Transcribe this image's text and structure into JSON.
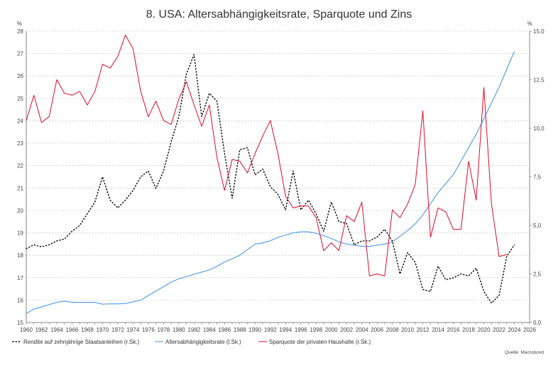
{
  "chart_data": {
    "type": "line",
    "title": "8. USA: Altersabhängigkeitsrate, Sparquote und Zins",
    "left_axis": {
      "unit": "%",
      "ylim": [
        15,
        28
      ],
      "ticks": [
        15,
        16,
        17,
        18,
        19,
        20,
        21,
        22,
        23,
        24,
        25,
        26,
        27,
        28
      ]
    },
    "right_axis": {
      "unit": "%",
      "ylim": [
        0,
        15
      ],
      "ticks": [
        0,
        2.5,
        5,
        7.5,
        10,
        12.5,
        15
      ],
      "tick_labels": [
        "0,0",
        "2,5",
        "5,0",
        "7,5",
        "10,0",
        "12,5",
        "15,0"
      ]
    },
    "x_axis": {
      "xlim": [
        1960,
        2026
      ],
      "ticks": [
        1960,
        1962,
        1964,
        1966,
        1968,
        1970,
        1972,
        1974,
        1976,
        1978,
        1980,
        1982,
        1984,
        1986,
        1988,
        1990,
        1992,
        1994,
        1996,
        1998,
        2000,
        2002,
        2004,
        2006,
        2008,
        2010,
        2012,
        2014,
        2016,
        2018,
        2020,
        2022,
        2024,
        2026
      ]
    },
    "series": [
      {
        "name": "Rendite auf zehnjährige Staatsanleihen (r.Sk.)",
        "axis": "right",
        "color": "#000000",
        "style": "dotted",
        "points": [
          [
            1960,
            3.8
          ],
          [
            1961,
            4.0
          ],
          [
            1962,
            3.9
          ],
          [
            1963,
            4.0
          ],
          [
            1964,
            4.2
          ],
          [
            1965,
            4.3
          ],
          [
            1966,
            4.7
          ],
          [
            1967,
            5.0
          ],
          [
            1968,
            5.6
          ],
          [
            1969,
            6.2
          ],
          [
            1970,
            7.5
          ],
          [
            1971,
            6.3
          ],
          [
            1972,
            5.9
          ],
          [
            1973,
            6.3
          ],
          [
            1974,
            6.8
          ],
          [
            1975,
            7.5
          ],
          [
            1976,
            7.8
          ],
          [
            1977,
            6.9
          ],
          [
            1978,
            7.8
          ],
          [
            1979,
            9.3
          ],
          [
            1980,
            10.6
          ],
          [
            1981,
            12.8
          ],
          [
            1982,
            13.8
          ],
          [
            1983,
            10.6
          ],
          [
            1984,
            11.8
          ],
          [
            1985,
            11.4
          ],
          [
            1986,
            8.7
          ],
          [
            1987,
            6.4
          ],
          [
            1988,
            8.9
          ],
          [
            1989,
            9.0
          ],
          [
            1990,
            7.6
          ],
          [
            1991,
            7.9
          ],
          [
            1992,
            7.0
          ],
          [
            1993,
            6.6
          ],
          [
            1994,
            5.8
          ],
          [
            1995,
            7.8
          ],
          [
            1996,
            5.8
          ],
          [
            1997,
            6.3
          ],
          [
            1998,
            5.6
          ],
          [
            1999,
            4.7
          ],
          [
            2000,
            6.2
          ],
          [
            2001,
            5.2
          ],
          [
            2002,
            5.1
          ],
          [
            2003,
            4.0
          ],
          [
            2004,
            4.2
          ],
          [
            2005,
            4.2
          ],
          [
            2006,
            4.4
          ],
          [
            2007,
            4.8
          ],
          [
            2008,
            4.2
          ],
          [
            2009,
            2.5
          ],
          [
            2010,
            3.6
          ],
          [
            2011,
            3.1
          ],
          [
            2012,
            1.7
          ],
          [
            2013,
            1.6
          ],
          [
            2014,
            2.9
          ],
          [
            2015,
            2.2
          ],
          [
            2016,
            2.3
          ],
          [
            2017,
            2.5
          ],
          [
            2018,
            2.4
          ],
          [
            2019,
            2.8
          ],
          [
            2020,
            1.6
          ],
          [
            2021,
            1.0
          ],
          [
            2022,
            1.4
          ],
          [
            2023,
            3.4
          ],
          [
            2024,
            4.0
          ]
        ]
      },
      {
        "name": "Altersabhängigkeitsrate (l.Sk.)",
        "axis": "left",
        "color": "#3a8ee6",
        "style": "solid",
        "points": [
          [
            1960,
            15.4
          ],
          [
            1961,
            15.6
          ],
          [
            1962,
            15.7
          ],
          [
            1963,
            15.8
          ],
          [
            1964,
            15.9
          ],
          [
            1965,
            15.95
          ],
          [
            1966,
            15.9
          ],
          [
            1967,
            15.9
          ],
          [
            1968,
            15.9
          ],
          [
            1969,
            15.9
          ],
          [
            1970,
            15.82
          ],
          [
            1971,
            15.83
          ],
          [
            1972,
            15.83
          ],
          [
            1973,
            15.85
          ],
          [
            1974,
            15.92
          ],
          [
            1975,
            16.0
          ],
          [
            1976,
            16.2
          ],
          [
            1977,
            16.4
          ],
          [
            1978,
            16.6
          ],
          [
            1979,
            16.8
          ],
          [
            1980,
            16.95
          ],
          [
            1981,
            17.05
          ],
          [
            1982,
            17.15
          ],
          [
            1983,
            17.25
          ],
          [
            1984,
            17.35
          ],
          [
            1985,
            17.5
          ],
          [
            1986,
            17.7
          ],
          [
            1987,
            17.85
          ],
          [
            1988,
            18.0
          ],
          [
            1989,
            18.25
          ],
          [
            1990,
            18.5
          ],
          [
            1991,
            18.55
          ],
          [
            1992,
            18.65
          ],
          [
            1993,
            18.8
          ],
          [
            1994,
            18.9
          ],
          [
            1995,
            19.0
          ],
          [
            1996,
            19.05
          ],
          [
            1997,
            19.05
          ],
          [
            1998,
            18.98
          ],
          [
            1999,
            18.88
          ],
          [
            2000,
            18.75
          ],
          [
            2001,
            18.6
          ],
          [
            2002,
            18.5
          ],
          [
            2003,
            18.45
          ],
          [
            2004,
            18.4
          ],
          [
            2005,
            18.4
          ],
          [
            2006,
            18.45
          ],
          [
            2007,
            18.5
          ],
          [
            2008,
            18.6
          ],
          [
            2009,
            18.85
          ],
          [
            2010,
            19.1
          ],
          [
            2011,
            19.4
          ],
          [
            2012,
            19.8
          ],
          [
            2013,
            20.3
          ],
          [
            2014,
            20.8
          ],
          [
            2015,
            21.2
          ],
          [
            2016,
            21.6
          ],
          [
            2017,
            22.2
          ],
          [
            2018,
            22.8
          ],
          [
            2019,
            23.4
          ],
          [
            2020,
            24.1
          ],
          [
            2021,
            24.8
          ],
          [
            2022,
            25.5
          ],
          [
            2023,
            26.3
          ],
          [
            2024,
            27.1
          ]
        ]
      },
      {
        "name": "Sparquote der privaten Haushalte (r.Sk.)",
        "axis": "right",
        "color": "#dc0a28",
        "style": "solid",
        "points": [
          [
            1960,
            10.4
          ],
          [
            1961,
            11.7
          ],
          [
            1962,
            10.3
          ],
          [
            1963,
            10.6
          ],
          [
            1964,
            12.5
          ],
          [
            1965,
            11.8
          ],
          [
            1966,
            11.7
          ],
          [
            1967,
            11.9
          ],
          [
            1968,
            11.2
          ],
          [
            1969,
            11.9
          ],
          [
            1970,
            13.3
          ],
          [
            1971,
            13.1
          ],
          [
            1972,
            13.7
          ],
          [
            1973,
            14.8
          ],
          [
            1974,
            14.1
          ],
          [
            1975,
            11.9
          ],
          [
            1976,
            10.6
          ],
          [
            1977,
            11.4
          ],
          [
            1978,
            10.4
          ],
          [
            1979,
            10.2
          ],
          [
            1980,
            11.5
          ],
          [
            1981,
            12.4
          ],
          [
            1982,
            11.2
          ],
          [
            1983,
            10.1
          ],
          [
            1984,
            11.2
          ],
          [
            1985,
            8.5
          ],
          [
            1986,
            6.8
          ],
          [
            1987,
            8.4
          ],
          [
            1988,
            8.3
          ],
          [
            1989,
            7.7
          ],
          [
            1990,
            8.7
          ],
          [
            1991,
            9.6
          ],
          [
            1992,
            10.4
          ],
          [
            1993,
            8.7
          ],
          [
            1994,
            6.5
          ],
          [
            1995,
            5.9
          ],
          [
            1996,
            6.0
          ],
          [
            1997,
            6.0
          ],
          [
            1998,
            5.4
          ],
          [
            1999,
            3.7
          ],
          [
            2000,
            4.1
          ],
          [
            2001,
            3.7
          ],
          [
            2002,
            5.5
          ],
          [
            2003,
            5.2
          ],
          [
            2004,
            6.2
          ],
          [
            2005,
            2.4
          ],
          [
            2006,
            2.5
          ],
          [
            2007,
            2.4
          ],
          [
            2008,
            5.8
          ],
          [
            2009,
            5.4
          ],
          [
            2010,
            6.1
          ],
          [
            2011,
            7.1
          ],
          [
            2012,
            10.9
          ],
          [
            2013,
            4.4
          ],
          [
            2014,
            5.9
          ],
          [
            2015,
            5.7
          ],
          [
            2016,
            4.8
          ],
          [
            2017,
            4.8
          ],
          [
            2018,
            8.3
          ],
          [
            2019,
            6.3
          ],
          [
            2020,
            12.1
          ],
          [
            2021,
            6.1
          ],
          [
            2022,
            3.4
          ],
          [
            2023,
            3.5
          ]
        ]
      }
    ],
    "legend_position": "bottom-left",
    "source": "Quelle: Macrobond"
  }
}
